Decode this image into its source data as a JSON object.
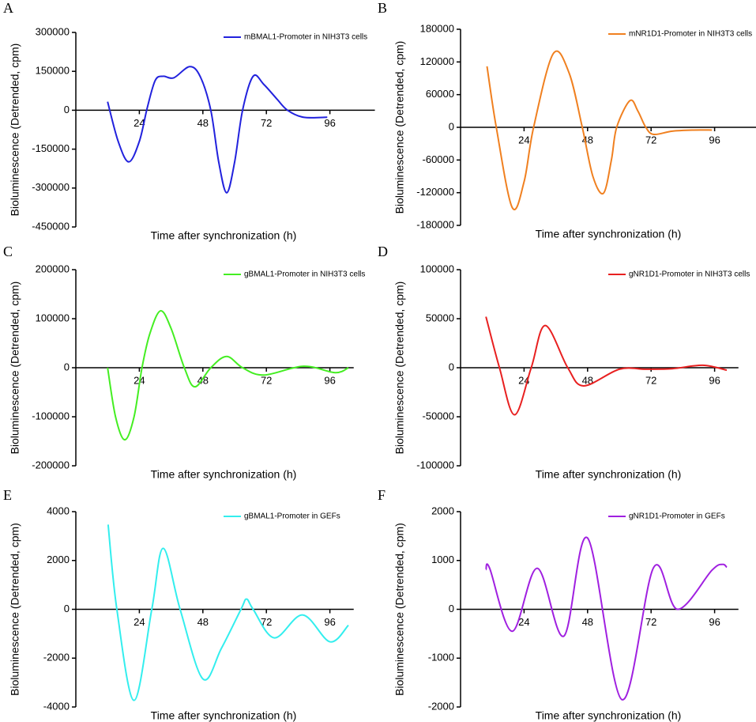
{
  "chart_data": [
    {
      "type": "line",
      "panel": "A",
      "ylabel": "Bioluminescence (Detrended, cpm)",
      "xlabel": "Time after synchronization (h)",
      "xlim": [
        0,
        113
      ],
      "xticks": [
        24,
        48,
        72,
        96
      ],
      "ylim": [
        -450000,
        300000
      ],
      "yticks": [
        -450000,
        -300000,
        -150000,
        0,
        150000,
        300000
      ],
      "series": [
        {
          "name": "mBMAL1-Promoter in NIH3T3 cells",
          "color": "#2222dd",
          "x": [
            12,
            16,
            20,
            24,
            27,
            30,
            33,
            37,
            43,
            47,
            51,
            54,
            57,
            60,
            63,
            67,
            71,
            76,
            80,
            86,
            95
          ],
          "values": [
            33000,
            -120000,
            -199000,
            -120000,
            10000,
            115000,
            131000,
            125000,
            168000,
            130000,
            0,
            -200000,
            -318000,
            -200000,
            0,
            131000,
            100000,
            43000,
            0,
            -27000,
            -27000
          ]
        }
      ]
    },
    {
      "type": "line",
      "panel": "B",
      "ylabel": "Bioluminescence (Detrended, cpm)",
      "xlabel": "Time after synchronization (h)",
      "xlim": [
        0,
        112
      ],
      "xticks": [
        24,
        48,
        72,
        96
      ],
      "ylim": [
        -180000,
        180000
      ],
      "yticks": [
        -180000,
        -120000,
        -60000,
        0,
        60000,
        120000,
        180000
      ],
      "series": [
        {
          "name": "mNR1D1-Promoter in NIH3T3 cells",
          "color": "#f08020",
          "x": [
            10,
            13.5,
            19.5,
            24,
            27.6,
            35,
            41,
            46,
            50,
            54,
            57,
            59,
            64,
            67,
            70,
            73,
            80,
            88,
            95
          ],
          "values": [
            112000,
            0,
            -147000,
            -100000,
            0,
            135000,
            100000,
            0,
            -90000,
            -121000,
            -60000,
            0,
            49000,
            30000,
            0,
            -13000,
            -7000,
            -5000,
            -5000
          ]
        }
      ]
    },
    {
      "type": "line",
      "panel": "C",
      "ylabel": "Bioluminescence (Detrended, cpm)",
      "xlabel": "Time after synchronization (h)",
      "xlim": [
        0,
        105
      ],
      "xticks": [
        24,
        48,
        72,
        96
      ],
      "ylim": [
        -200000,
        200000
      ],
      "yticks": [
        -200000,
        -100000,
        0,
        100000,
        200000
      ],
      "series": [
        {
          "name": "gBMAL1-Promoter in NIH3T3 cells",
          "color": "#44ee22",
          "x": [
            12,
            15,
            18.5,
            22,
            25,
            28,
            32,
            36,
            41,
            45,
            51,
            57,
            63,
            71,
            86,
            98,
            103
          ],
          "values": [
            0,
            -100000,
            -147000,
            -100000,
            0,
            70000,
            116000,
            80000,
            0,
            -39000,
            0,
            23000,
            0,
            -15000,
            3000,
            -10000,
            0
          ]
        }
      ]
    },
    {
      "type": "line",
      "panel": "D",
      "ylabel": "Bioluminescence (Detrended, cpm)",
      "xlabel": "Time after synchronization (h)",
      "xlim": [
        0,
        105
      ],
      "xticks": [
        24,
        48,
        72,
        96
      ],
      "ylim": [
        -100000,
        100000
      ],
      "yticks": [
        -100000,
        -50000,
        0,
        50000,
        100000
      ],
      "series": [
        {
          "name": "gNR1D1-Promoter in NIH3T3 cells",
          "color": "#e82020",
          "x": [
            9.6,
            14.7,
            20.4,
            26.7,
            32,
            40.5,
            46.5,
            60,
            70,
            80,
            91.5,
            100.6
          ],
          "values": [
            52000,
            0,
            -48000,
            0,
            43000,
            0,
            -18500,
            -1500,
            -1500,
            -1000,
            2500,
            -2500
          ]
        }
      ]
    },
    {
      "type": "line",
      "panel": "E",
      "ylabel": "Bioluminescence (Detrended, cpm)",
      "xlabel": "Time after synchronization (h)",
      "xlim": [
        0,
        105
      ],
      "xticks": [
        24,
        48,
        72,
        96
      ],
      "ylim": [
        -4000,
        4000
      ],
      "yticks": [
        -4000,
        -2000,
        0,
        2000,
        4000
      ],
      "series": [
        {
          "name": "gBMAL1-Promoter in GEFs",
          "color": "#33eeee",
          "x": [
            12.2,
            15.5,
            22,
            28.7,
            33,
            39.4,
            48,
            55,
            62.4,
            64.5,
            67,
            75,
            85.7,
            96,
            103
          ],
          "values": [
            3470,
            0,
            -3730,
            0,
            2500,
            0,
            -2850,
            -1600,
            0,
            420,
            0,
            -1170,
            -230,
            -1330,
            -650
          ]
        }
      ]
    },
    {
      "type": "line",
      "panel": "F",
      "ylabel": "Bioluminescence (Detrended, cpm)",
      "xlabel": "Time after synchronization (h)",
      "xlim": [
        0,
        105
      ],
      "xticks": [
        24,
        48,
        72,
        96
      ],
      "ylim": [
        -2000,
        2000
      ],
      "yticks": [
        -2000,
        -1000,
        0,
        1000,
        2000
      ],
      "series": [
        {
          "name": "gNR1D1-Promoter in GEFs",
          "color": "#a020e0",
          "x": [
            9.6,
            11,
            19.5,
            29,
            39,
            48,
            61,
            73,
            82,
            95,
            99,
            100.6
          ],
          "values": [
            810,
            840,
            -450,
            840,
            -550,
            1460,
            -1850,
            860,
            0,
            800,
            920,
            860
          ]
        }
      ]
    }
  ]
}
